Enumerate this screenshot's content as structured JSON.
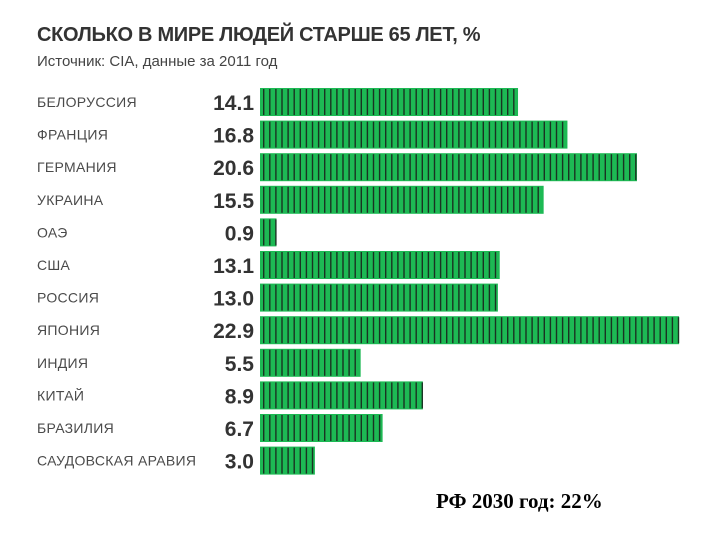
{
  "chart_data": {
    "type": "bar",
    "orientation": "horizontal",
    "title": "СКОЛЬКО В МИРЕ ЛЮДЕЙ СТАРШЕ 65 ЛЕТ, %",
    "subtitle": "Источник: CIA, данные за 2011 год",
    "categories": [
      "БЕЛОРУССИЯ",
      "ФРАНЦИЯ",
      "ГЕРМАНИЯ",
      "УКРАИНА",
      "ОАЭ",
      "США",
      "РОССИЯ",
      "ЯПОНИЯ",
      "ИНДИЯ",
      "КИТАЙ",
      "БРАЗИЛИЯ",
      "САУДОВСКАЯ АРАВИЯ"
    ],
    "values": [
      14.1,
      16.8,
      20.6,
      15.5,
      0.9,
      13.1,
      13.0,
      22.9,
      5.5,
      8.9,
      6.7,
      3.0
    ],
    "value_labels": [
      "14.1",
      "16.8",
      "20.6",
      "15.5",
      "0.9",
      "13.1",
      "13.0",
      "22.9",
      "5.5",
      "8.9",
      "6.7",
      "3.0"
    ],
    "bar_color": "#1db954",
    "stripe_color": "#1a1a1a",
    "grid": false,
    "legend": "none"
  },
  "footnote": "РФ 2030 год: 22%"
}
